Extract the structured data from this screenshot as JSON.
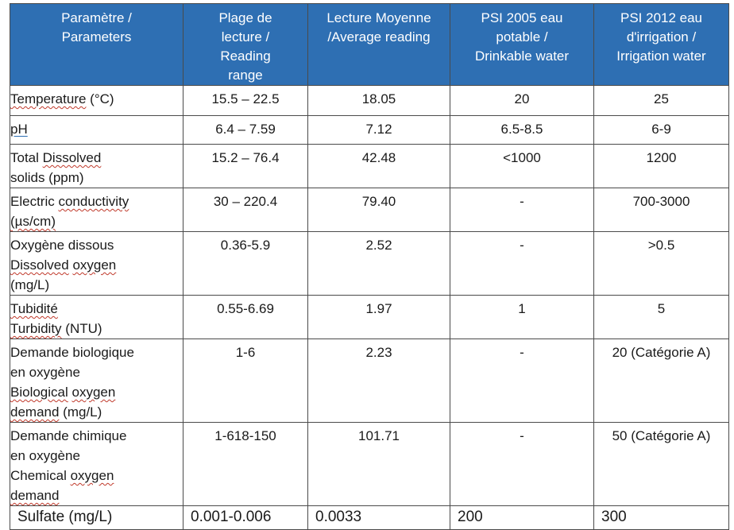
{
  "headers": [
    [
      "Paramètre /",
      "Parameters"
    ],
    [
      "Plage de",
      "lecture /",
      "Reading",
      "range"
    ],
    [
      "Lecture Moyenne",
      "/Average reading"
    ],
    [
      "PSI 2005 eau",
      "potable /",
      "Drinkable water"
    ],
    [
      "PSI 2012 eau",
      "d'irrigation /",
      "Irrigation water"
    ]
  ],
  "rows": [
    {
      "param": [
        [
          {
            "t": "Temperature",
            "s": true
          },
          {
            "t": " (°C)"
          }
        ]
      ],
      "range": "15.5 – 22.5",
      "average": "18.05",
      "drinkable": "20",
      "irrigation": "25"
    },
    {
      "param": [
        [
          {
            "t": "pH",
            "u": true
          }
        ]
      ],
      "range": "6.4 – 7.59",
      "average": "7.12",
      "drinkable": "6.5-8.5",
      "irrigation": "6-9"
    },
    {
      "param": [
        [
          {
            "t": "Total "
          },
          {
            "t": "Dissolved",
            "s": true
          }
        ],
        [
          {
            "t": "solids (ppm)"
          }
        ]
      ],
      "range": "15.2 – 76.4",
      "average": "42.48",
      "drinkable": "<1000",
      "irrigation": "1200"
    },
    {
      "param": [
        [
          {
            "t": "Electric "
          },
          {
            "t": "conductivity",
            "s": true
          }
        ],
        [
          {
            "t": "(µs/cm)",
            "s": true
          }
        ]
      ],
      "range": "30 – 220.4",
      "average": "79.40",
      "drinkable": "-",
      "irrigation": "700-3000"
    },
    {
      "param": [
        [
          {
            "t": "Oxygène dissous"
          }
        ],
        [
          {
            "t": "Dissolved",
            "s": true
          },
          {
            "t": " "
          },
          {
            "t": "oxygen",
            "s": true
          }
        ],
        [
          {
            "t": "(mg/L)"
          }
        ]
      ],
      "range": "0.36-5.9",
      "average": "2.52",
      "drinkable": "-",
      "irrigation": ">0.5"
    },
    {
      "param": [
        [
          {
            "t": "Tubidité",
            "s": true
          }
        ],
        [
          {
            "t": "Turbidity",
            "s": true
          },
          {
            "t": " (NTU)"
          }
        ]
      ],
      "range": "0.55-6.69",
      "average": "1.97",
      "drinkable": "1",
      "irrigation": "5"
    },
    {
      "param": [
        [
          {
            "t": "Demande biologique"
          }
        ],
        [
          {
            "t": "en oxygène"
          }
        ],
        [
          {
            "t": "Biological",
            "s": true
          },
          {
            "t": " "
          },
          {
            "t": "oxygen",
            "s": true
          }
        ],
        [
          {
            "t": "demand",
            "s": true
          },
          {
            "t": " (mg/L)"
          }
        ]
      ],
      "range": "1-6",
      "average": "2.23",
      "drinkable": "-",
      "irrigation": "20 (Catégorie A)"
    },
    {
      "param": [
        [
          {
            "t": "Demande chimique"
          }
        ],
        [
          {
            "t": "en oxygène"
          }
        ],
        [
          {
            "t": "Chemical "
          },
          {
            "t": "oxygen",
            "s": true
          }
        ],
        [
          {
            "t": "demand",
            "s": true
          }
        ]
      ],
      "range": "1-618-150",
      "average": "101.71",
      "drinkable": "-",
      "irrigation": "50 (Catégorie A)"
    },
    {
      "param": [
        [
          {
            "t": "Sulfate (mg/L)"
          }
        ]
      ],
      "range": "0.001-0.006",
      "average": "0.0033",
      "drinkable": "200",
      "irrigation": "300",
      "last": true
    }
  ],
  "colors": {
    "header_bg": "#2e6fb3",
    "header_text": "#ffffff",
    "border": "#4a4a4a",
    "spellcheck_squiggle": "#c0392b"
  }
}
